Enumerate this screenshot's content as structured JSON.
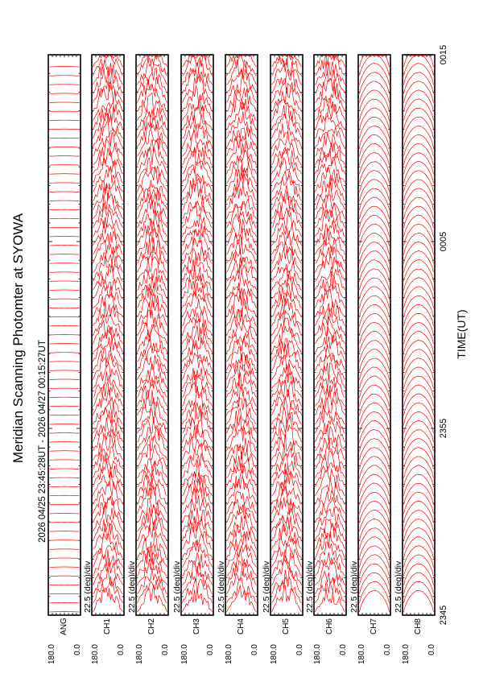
{
  "title": "Meridian Scanning Photomter at SYOWA",
  "subtitle": "2026 04/25 23:45:28UT - 2026 04/27 00:15:27UT",
  "xlabel": "TIME(UT)",
  "chart_data": {
    "type": "line",
    "orientation": "rotated-90-ccw",
    "title": "Meridian Scanning Photomter at SYOWA",
    "subtitle": "2026 04/25 23:45:28UT - 2026 04/27 00:15:27UT",
    "xlabel": "TIME(UT)",
    "x_ticks": [
      "2345",
      "2355",
      "0005",
      "0015"
    ],
    "x_range_minutes": [
      0,
      30
    ],
    "y_range_deg": [
      0.0,
      180.0
    ],
    "scale_label": "22.5 (deg)/div",
    "line_color": "#ff0000",
    "grid": false,
    "panels": [
      {
        "id": "ANG",
        "label": "ANG",
        "ymin_label": "0.0",
        "ymax_label": "180.0",
        "scale_label": "",
        "kind": "angle"
      },
      {
        "id": "CH1",
        "label": "CH1",
        "ymin_label": "0.0",
        "ymax_label": "180.0",
        "scale_label": "22.5 (deg)/div",
        "kind": "noisy"
      },
      {
        "id": "CH2",
        "label": "CH2",
        "ymin_label": "0.0",
        "ymax_label": "180.0",
        "scale_label": "22.5 (deg)/div",
        "kind": "noisy"
      },
      {
        "id": "CH3",
        "label": "CH3",
        "ymin_label": "0.0",
        "ymax_label": "180.0",
        "scale_label": "22.5 (deg)/div",
        "kind": "noisy"
      },
      {
        "id": "CH4",
        "label": "CH4",
        "ymin_label": "0.0",
        "ymax_label": "180.0",
        "scale_label": "22.5 (deg)/div",
        "kind": "noisy"
      },
      {
        "id": "CH5",
        "label": "CH5",
        "ymin_label": "0.0",
        "ymax_label": "180.0",
        "scale_label": "22.5 (deg)/div",
        "kind": "noisy"
      },
      {
        "id": "CH6",
        "label": "CH6",
        "ymin_label": "0.0",
        "ymax_label": "180.0",
        "scale_label": "22.5 (deg)/div",
        "kind": "noisy"
      },
      {
        "id": "CH7",
        "label": "CH7",
        "ymin_label": "0.0",
        "ymax_label": "180.0",
        "scale_label": "22.5 (deg)/div",
        "kind": "smooth"
      },
      {
        "id": "CH8",
        "label": "CH8",
        "ymin_label": "0.0",
        "ymax_label": "180.0",
        "scale_label": "22.5 (deg)/div",
        "kind": "smooth"
      }
    ]
  }
}
